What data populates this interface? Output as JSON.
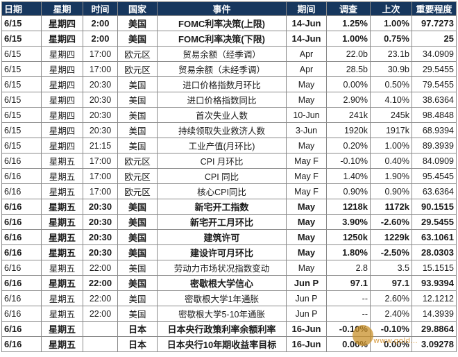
{
  "headers": [
    "日期",
    "星期",
    "时间",
    "国家",
    "事件",
    "期间",
    "调查",
    "上次",
    "重要程度"
  ],
  "rows": [
    {
      "date": "6/15",
      "weekday": "星期四",
      "time": "2:00",
      "country": "美国",
      "event": "FOMC利率决策(上限)",
      "period": "14-Jun",
      "survey": "1.25%",
      "prior": "1.00%",
      "importance": "97.7273",
      "bold": true
    },
    {
      "date": "6/15",
      "weekday": "星期四",
      "time": "2:00",
      "country": "美国",
      "event": "FOMC利率决策(下限)",
      "period": "14-Jun",
      "survey": "1.00%",
      "prior": "0.75%",
      "importance": "25",
      "bold": true
    },
    {
      "date": "6/15",
      "weekday": "星期四",
      "time": "17:00",
      "country": "欧元区",
      "event": "贸易余额（经季调）",
      "period": "Apr",
      "survey": "22.0b",
      "prior": "23.1b",
      "importance": "34.0909",
      "bold": false
    },
    {
      "date": "6/15",
      "weekday": "星期四",
      "time": "17:00",
      "country": "欧元区",
      "event": "贸易余额（未经季调）",
      "period": "Apr",
      "survey": "28.5b",
      "prior": "30.9b",
      "importance": "29.5455",
      "bold": false
    },
    {
      "date": "6/15",
      "weekday": "星期四",
      "time": "20:30",
      "country": "美国",
      "event": "进口价格指数月环比",
      "period": "May",
      "survey": "0.00%",
      "prior": "0.50%",
      "importance": "79.5455",
      "bold": false
    },
    {
      "date": "6/15",
      "weekday": "星期四",
      "time": "20:30",
      "country": "美国",
      "event": "进口价格指数同比",
      "period": "May",
      "survey": "2.90%",
      "prior": "4.10%",
      "importance": "38.6364",
      "bold": false
    },
    {
      "date": "6/15",
      "weekday": "星期四",
      "time": "20:30",
      "country": "美国",
      "event": "首次失业人数",
      "period": "10-Jun",
      "survey": "241k",
      "prior": "245k",
      "importance": "98.4848",
      "bold": false
    },
    {
      "date": "6/15",
      "weekday": "星期四",
      "time": "20:30",
      "country": "美国",
      "event": "持续领取失业救济人数",
      "period": "3-Jun",
      "survey": "1920k",
      "prior": "1917k",
      "importance": "68.9394",
      "bold": false
    },
    {
      "date": "6/15",
      "weekday": "星期四",
      "time": "21:15",
      "country": "美国",
      "event": "工业产值(月环比)",
      "period": "May",
      "survey": "0.20%",
      "prior": "1.00%",
      "importance": "89.3939",
      "bold": false
    },
    {
      "date": "6/16",
      "weekday": "星期五",
      "time": "17:00",
      "country": "欧元区",
      "event": "CPI 月环比",
      "period": "May F",
      "survey": "-0.10%",
      "prior": "0.40%",
      "importance": "84.0909",
      "bold": false
    },
    {
      "date": "6/16",
      "weekday": "星期五",
      "time": "17:00",
      "country": "欧元区",
      "event": "CPI 同比",
      "period": "May F",
      "survey": "1.40%",
      "prior": "1.90%",
      "importance": "95.4545",
      "bold": false
    },
    {
      "date": "6/16",
      "weekday": "星期五",
      "time": "17:00",
      "country": "欧元区",
      "event": "核心CPI同比",
      "period": "May F",
      "survey": "0.90%",
      "prior": "0.90%",
      "importance": "63.6364",
      "bold": false
    },
    {
      "date": "6/16",
      "weekday": "星期五",
      "time": "20:30",
      "country": "美国",
      "event": "新宅开工指数",
      "period": "May",
      "survey": "1218k",
      "prior": "1172k",
      "importance": "90.1515",
      "bold": true
    },
    {
      "date": "6/16",
      "weekday": "星期五",
      "time": "20:30",
      "country": "美国",
      "event": "新宅开工月环比",
      "period": "May",
      "survey": "3.90%",
      "prior": "-2.60%",
      "importance": "29.5455",
      "bold": true
    },
    {
      "date": "6/16",
      "weekday": "星期五",
      "time": "20:30",
      "country": "美国",
      "event": "建筑许可",
      "period": "May",
      "survey": "1250k",
      "prior": "1229k",
      "importance": "63.1061",
      "bold": true
    },
    {
      "date": "6/16",
      "weekday": "星期五",
      "time": "20:30",
      "country": "美国",
      "event": "建设许可月环比",
      "period": "May",
      "survey": "1.80%",
      "prior": "-2.50%",
      "importance": "28.0303",
      "bold": true
    },
    {
      "date": "6/16",
      "weekday": "星期五",
      "time": "22:00",
      "country": "美国",
      "event": "劳动力市场状况指数变动",
      "period": "May",
      "survey": "2.8",
      "prior": "3.5",
      "importance": "15.1515",
      "bold": false
    },
    {
      "date": "6/16",
      "weekday": "星期五",
      "time": "22:00",
      "country": "美国",
      "event": "密歇根大学信心",
      "period": "Jun P",
      "survey": "97.1",
      "prior": "97.1",
      "importance": "93.9394",
      "bold": true
    },
    {
      "date": "6/16",
      "weekday": "星期五",
      "time": "22:00",
      "country": "美国",
      "event": "密歇根大学1年通胀",
      "period": "Jun P",
      "survey": "--",
      "prior": "2.60%",
      "importance": "12.1212",
      "bold": false
    },
    {
      "date": "6/16",
      "weekday": "星期五",
      "time": "22:00",
      "country": "美国",
      "event": "密歇根大学5-10年通胀",
      "period": "Jun P",
      "survey": "--",
      "prior": "2.40%",
      "importance": "14.3939",
      "bold": false
    },
    {
      "date": "6/16",
      "weekday": "星期五",
      "time": "",
      "country": "日本",
      "event": "日本央行政策利率余额利率",
      "period": "16-Jun",
      "survey": "-0.10%",
      "prior": "-0.10%",
      "importance": "29.8864",
      "bold": true
    },
    {
      "date": "6/16",
      "weekday": "星期五",
      "time": "",
      "country": "日本",
      "event": "日本央行10年期收益率目标",
      "period": "16-Jun",
      "survey": "0.00%",
      "prior": "0.00%",
      "importance": "3.09278",
      "bold": true
    }
  ],
  "watermark": {
    "text": "www.gold..."
  }
}
